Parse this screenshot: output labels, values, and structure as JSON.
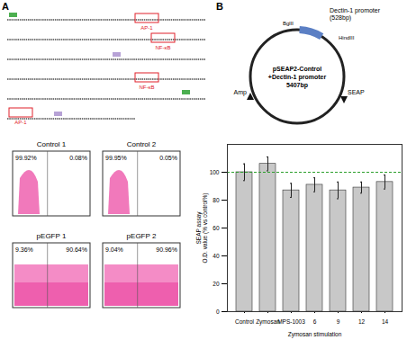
{
  "panel_a": {
    "label": "A",
    "sites": [
      "AP-1",
      "NF-κB",
      "NF-κB",
      "AP-1"
    ]
  },
  "panel_b": {
    "label": "B",
    "plasmid": "pSEAP2-Control\n+Dectin-1 promoter\n5407bp",
    "insert": "Dectin-1 promoter\n(528bp)",
    "site_left": "BglII",
    "site_right": "HindIII",
    "gene_left": "Amp",
    "gene_right": "SEAP"
  },
  "flow_plots": [
    {
      "title": "Control 1",
      "left": "99.92%",
      "right": "0.08%"
    },
    {
      "title": "Control 2",
      "left": "99.95%",
      "right": "0.05%"
    },
    {
      "title": "pEGFP 1",
      "left": "9.36%",
      "right": "90.64%"
    },
    {
      "title": "pEGFP 2",
      "left": "9.04%",
      "right": "90.96%"
    }
  ],
  "chart_data": {
    "type": "bar",
    "categories": [
      "Control",
      "Zymosan",
      "MPS-1003",
      "6",
      "9",
      "12",
      "14"
    ],
    "values": [
      100,
      106,
      87,
      91,
      87,
      89,
      93
    ],
    "error": [
      6,
      5,
      5,
      5,
      6,
      4,
      5
    ],
    "color": "#c8c8c8",
    "ylim": [
      0,
      120
    ],
    "yticks": [
      0,
      20,
      40,
      60,
      80,
      100
    ],
    "y_label": "SEAP assay\nO.D. value (% vs control%)",
    "x_label": "Zymosan stimulation",
    "reference_line": 100
  }
}
